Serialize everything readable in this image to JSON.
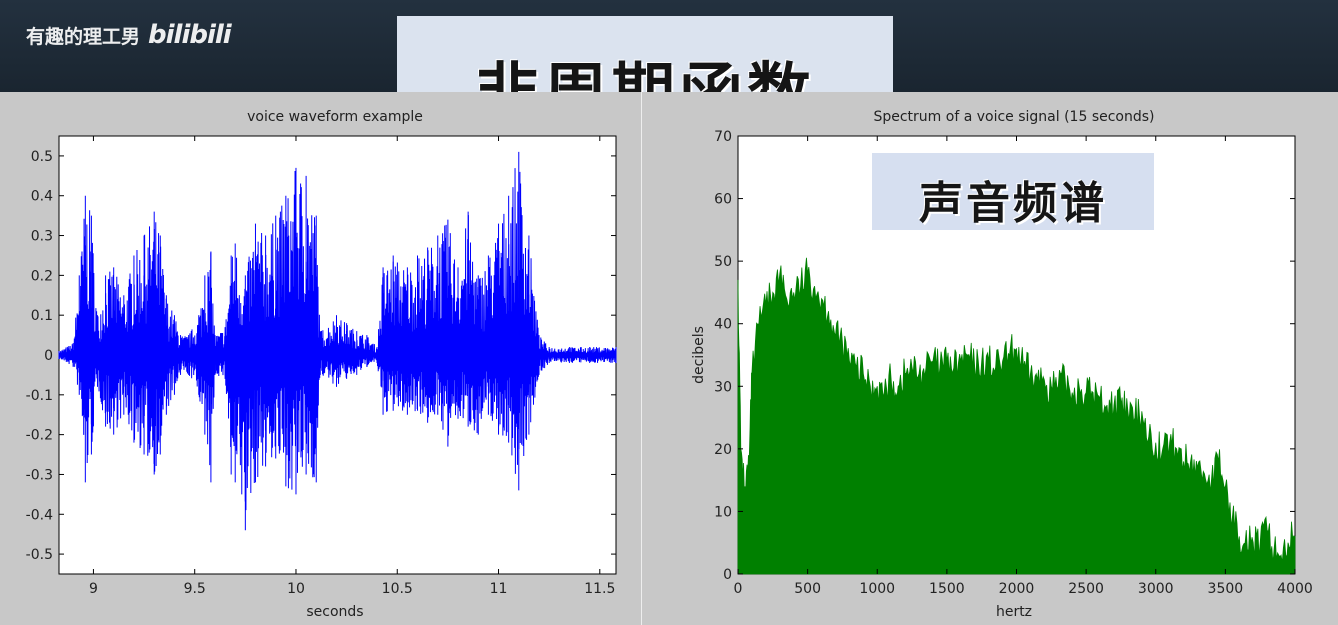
{
  "watermark": {
    "author": "有趣的理工男",
    "logo": "bilibili"
  },
  "slide_title": "非周期函数",
  "overlay_label": "声音频谱",
  "chart_data": [
    {
      "type": "line",
      "title": "voice waveform example",
      "xlabel": "seconds",
      "ylabel": "",
      "xlim": [
        8.83,
        11.58
      ],
      "ylim": [
        -0.55,
        0.55
      ],
      "xticks": [
        "9",
        "9.5",
        "10",
        "10.5",
        "11",
        "11.5"
      ],
      "xtick_values": [
        9,
        9.5,
        10,
        10.5,
        11,
        11.5
      ],
      "yticks": [
        "0.5",
        "0.4",
        "0.3",
        "0.2",
        "0.1",
        "0",
        "-0.1",
        "-0.2",
        "-0.3",
        "-0.4",
        "-0.5"
      ],
      "ytick_values": [
        0.5,
        0.4,
        0.3,
        0.2,
        0.1,
        0,
        -0.1,
        -0.2,
        -0.3,
        -0.4,
        -0.5
      ],
      "color": "#0000ff",
      "envelope": {
        "x": [
          8.83,
          8.9,
          8.93,
          8.96,
          8.99,
          9.02,
          9.06,
          9.1,
          9.15,
          9.2,
          9.25,
          9.3,
          9.33,
          9.36,
          9.4,
          9.43,
          9.47,
          9.52,
          9.55,
          9.58,
          9.6,
          9.65,
          9.68,
          9.7,
          9.75,
          9.8,
          9.85,
          9.9,
          9.95,
          10.0,
          10.05,
          10.1,
          10.12,
          10.2,
          10.25,
          10.3,
          10.35,
          10.4,
          10.43,
          10.48,
          10.55,
          10.6,
          10.65,
          10.7,
          10.75,
          10.8,
          10.85,
          10.9,
          10.95,
          11.0,
          11.05,
          11.1,
          11.15,
          11.2,
          11.25,
          11.35,
          11.45,
          11.58
        ],
        "upper": [
          0.01,
          0.03,
          0.2,
          0.4,
          0.35,
          0.1,
          0.2,
          0.22,
          0.15,
          0.25,
          0.3,
          0.36,
          0.3,
          0.15,
          0.1,
          0.05,
          0.05,
          0.1,
          0.2,
          0.26,
          0.05,
          0.07,
          0.25,
          0.28,
          0.2,
          0.33,
          0.3,
          0.35,
          0.4,
          0.47,
          0.45,
          0.35,
          0.06,
          0.1,
          0.08,
          0.06,
          0.05,
          0.02,
          0.22,
          0.25,
          0.22,
          0.25,
          0.27,
          0.3,
          0.34,
          0.22,
          0.36,
          0.2,
          0.25,
          0.33,
          0.4,
          0.51,
          0.3,
          0.05,
          0.02,
          0.02,
          0.02,
          0.02
        ],
        "lower": [
          -0.01,
          -0.03,
          -0.1,
          -0.32,
          -0.25,
          -0.08,
          -0.18,
          -0.2,
          -0.15,
          -0.22,
          -0.25,
          -0.3,
          -0.25,
          -0.15,
          -0.1,
          -0.05,
          -0.05,
          -0.1,
          -0.2,
          -0.32,
          -0.05,
          -0.06,
          -0.3,
          -0.32,
          -0.44,
          -0.32,
          -0.28,
          -0.26,
          -0.33,
          -0.35,
          -0.3,
          -0.32,
          -0.05,
          -0.08,
          -0.06,
          -0.05,
          -0.03,
          -0.02,
          -0.15,
          -0.14,
          -0.15,
          -0.14,
          -0.17,
          -0.15,
          -0.23,
          -0.16,
          -0.18,
          -0.2,
          -0.15,
          -0.2,
          -0.22,
          -0.34,
          -0.2,
          -0.05,
          -0.02,
          -0.02,
          -0.02,
          -0.02
        ]
      }
    },
    {
      "type": "area",
      "title": "Spectrum of a voice signal (15 seconds)",
      "xlabel": "hertz",
      "ylabel": "decibels",
      "xlim": [
        0,
        4000
      ],
      "ylim": [
        0,
        70
      ],
      "xticks": [
        "0",
        "500",
        "1000",
        "1500",
        "2000",
        "2500",
        "3000",
        "3500",
        "4000"
      ],
      "xtick_values": [
        0,
        500,
        1000,
        1500,
        2000,
        2500,
        3000,
        3500,
        4000
      ],
      "yticks": [
        "70",
        "60",
        "50",
        "40",
        "30",
        "20",
        "10",
        "0"
      ],
      "ytick_values": [
        70,
        60,
        50,
        40,
        30,
        20,
        10,
        0
      ],
      "color": "#008000",
      "x": [
        0,
        20,
        50,
        80,
        100,
        150,
        200,
        250,
        300,
        350,
        400,
        450,
        500,
        550,
        600,
        650,
        700,
        750,
        800,
        850,
        900,
        950,
        1000,
        1050,
        1100,
        1150,
        1200,
        1250,
        1300,
        1350,
        1400,
        1450,
        1500,
        1550,
        1600,
        1650,
        1700,
        1750,
        1800,
        1850,
        1900,
        1950,
        2000,
        2050,
        2100,
        2150,
        2200,
        2250,
        2300,
        2350,
        2400,
        2450,
        2500,
        2550,
        2600,
        2650,
        2700,
        2750,
        2800,
        2850,
        2900,
        2950,
        3000,
        3050,
        3100,
        3150,
        3200,
        3250,
        3300,
        3350,
        3400,
        3450,
        3500,
        3550,
        3600,
        3650,
        3700,
        3750,
        3800,
        3850,
        3900,
        3950,
        4000
      ],
      "values": [
        47,
        20,
        14,
        18,
        32,
        40,
        43,
        45,
        48,
        44,
        45,
        46,
        48,
        46,
        44,
        42,
        38,
        37,
        34,
        33,
        32,
        30,
        30,
        29,
        31,
        30,
        32,
        33,
        32,
        33,
        34,
        33,
        34,
        33,
        34,
        35,
        33,
        34,
        34,
        33,
        34,
        35,
        36,
        33,
        32,
        31,
        31,
        30,
        30,
        31,
        29,
        30,
        29,
        29,
        28,
        27,
        27,
        27,
        26,
        25,
        26,
        22,
        21,
        20,
        21,
        20,
        18,
        18,
        17,
        16,
        15,
        18,
        14,
        9,
        6,
        7,
        5,
        5,
        7,
        4,
        3,
        5,
        6
      ]
    }
  ]
}
